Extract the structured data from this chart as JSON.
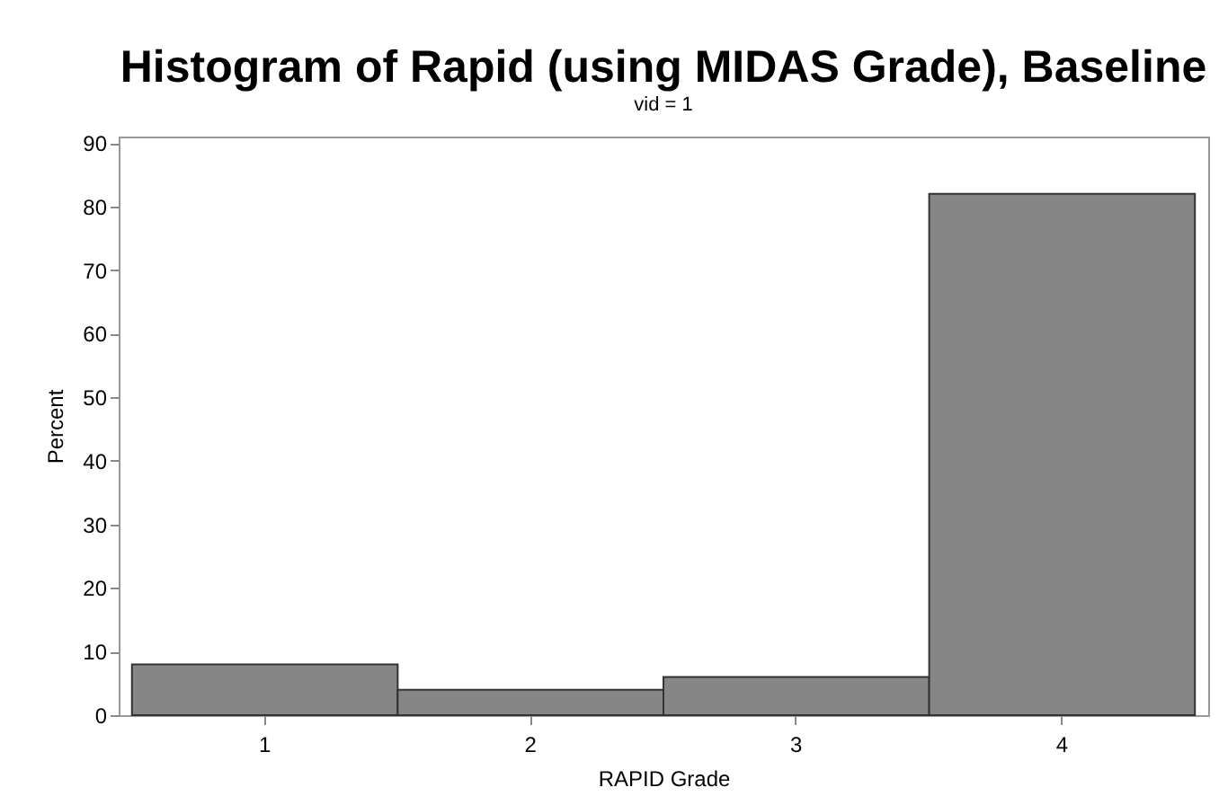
{
  "chart_data": {
    "type": "bar",
    "title": "Histogram of Rapid (using MIDAS Grade), Baseline",
    "subtitle": "vid = 1",
    "xlabel": "RAPID Grade",
    "ylabel": "Percent",
    "categories": [
      "1",
      "2",
      "3",
      "4"
    ],
    "values": [
      8,
      4,
      6,
      82
    ],
    "color": "#868686",
    "ylim": [
      0,
      91
    ],
    "yticks": [
      0,
      10,
      20,
      30,
      40,
      50,
      60,
      70,
      80,
      90
    ],
    "grid": false
  }
}
